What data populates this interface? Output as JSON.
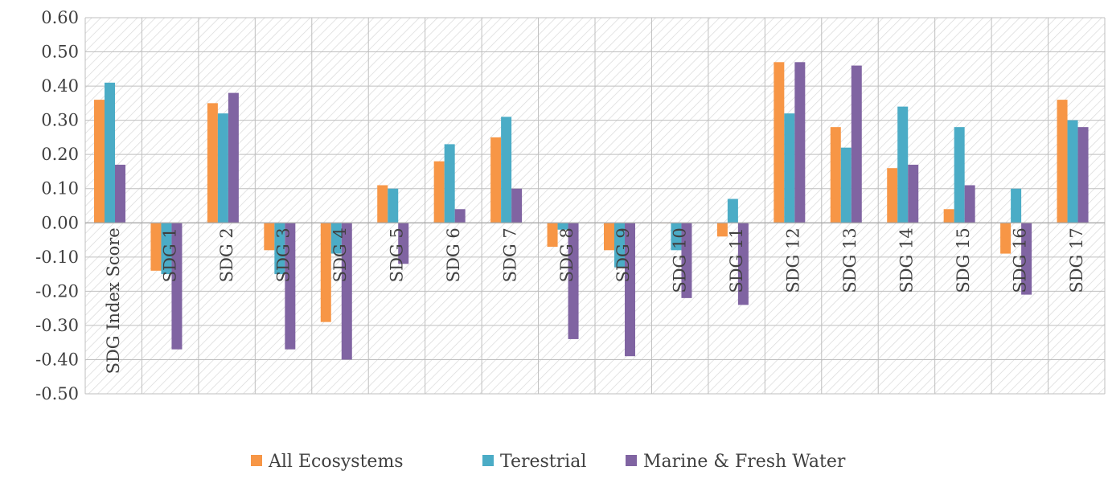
{
  "chart_data": {
    "type": "bar",
    "categories": [
      "SDG Index Score",
      "SDG 1",
      "SDG 2",
      "SDG 3",
      "SDG 4",
      "SDG 5",
      "SDG 6",
      "SDG 7",
      "SDG 8",
      "SDG 9",
      "SDG 10",
      "SDG 11",
      "SDG 12",
      "SDG 13",
      "SDG 14",
      "SDG 15",
      "SDG 16",
      "SDG 17"
    ],
    "series": [
      {
        "name": "All Ecosystems",
        "color": "#F79646",
        "values": [
          0.36,
          -0.14,
          0.35,
          -0.08,
          -0.29,
          0.11,
          0.18,
          0.25,
          -0.07,
          -0.08,
          0.0,
          -0.04,
          0.47,
          0.28,
          0.16,
          0.04,
          -0.09,
          0.36
        ]
      },
      {
        "name": "Terestrial",
        "color": "#4BACC6",
        "values": [
          0.41,
          -0.15,
          0.32,
          -0.15,
          -0.09,
          0.1,
          0.23,
          0.31,
          -0.02,
          -0.13,
          -0.08,
          0.07,
          0.32,
          0.22,
          0.34,
          0.28,
          0.1,
          0.3
        ]
      },
      {
        "name": "Marine & Fresh Water",
        "color": "#8064A2",
        "values": [
          0.17,
          -0.37,
          0.38,
          -0.37,
          -0.4,
          -0.12,
          0.04,
          0.1,
          -0.34,
          -0.39,
          -0.22,
          -0.24,
          0.47,
          0.46,
          0.17,
          0.11,
          -0.21,
          0.28
        ]
      }
    ],
    "ylim": [
      -0.5,
      0.6
    ],
    "yticks": [
      "0.60",
      "0.50",
      "0.40",
      "0.30",
      "0.20",
      "0.10",
      "0.00",
      "-0.10",
      "-0.20",
      "-0.30",
      "-0.40",
      "-0.50"
    ],
    "title": "",
    "xlabel": "",
    "ylabel": "",
    "grid": true,
    "legend": "bottom"
  }
}
